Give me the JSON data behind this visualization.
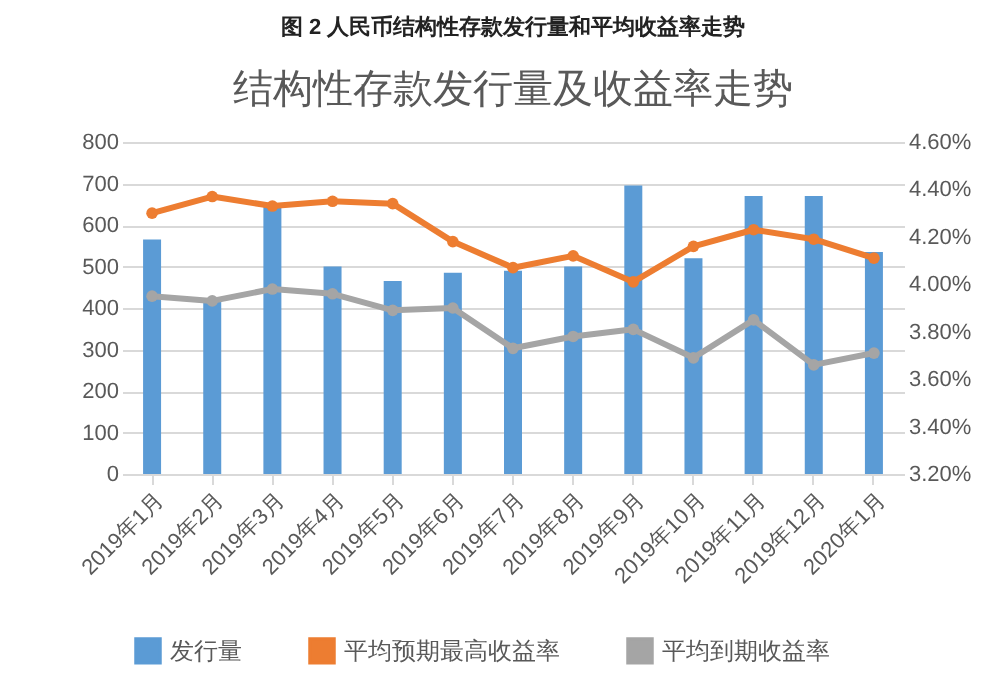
{
  "chart_data": {
    "type": "bar",
    "title": "图 2 人民币结构性存款发行量和平均收益率走势",
    "subtitle": "结构性存款发行量及收益率走势",
    "categories": [
      "2019年1月",
      "2019年2月",
      "2019年3月",
      "2019年4月",
      "2019年5月",
      "2019年6月",
      "2019年7月",
      "2019年8月",
      "2019年9月",
      "2019年10月",
      "2019年11月",
      "2019年12月",
      "2020年1月"
    ],
    "series": [
      {
        "name": "发行量",
        "color": "#5b9bd5",
        "values": [
          565,
          415,
          645,
          500,
          465,
          485,
          490,
          500,
          695,
          520,
          670,
          670,
          535
        ]
      },
      {
        "name": "平均预期最高收益率",
        "type": "line",
        "axis": "y2",
        "color": "#ed7d31",
        "values": [
          4.3,
          4.37,
          4.33,
          4.35,
          4.34,
          4.18,
          4.07,
          4.12,
          4.01,
          4.16,
          4.23,
          4.19,
          4.11
        ]
      },
      {
        "name": "平均到期收益率",
        "type": "line",
        "axis": "y2",
        "color": "#a5a5a5",
        "values": [
          3.95,
          3.93,
          3.98,
          3.96,
          3.89,
          3.9,
          3.73,
          3.78,
          3.81,
          3.69,
          3.85,
          3.66,
          3.71
        ]
      }
    ],
    "ylim": [
      0,
      800
    ],
    "yticks": [
      0,
      100,
      200,
      300,
      400,
      500,
      600,
      700,
      800
    ],
    "y2lim": [
      3.2,
      4.6
    ],
    "y2ticks": [
      {
        "value": 3.2,
        "label": "3.20%"
      },
      {
        "value": 3.4,
        "label": "3.40%"
      },
      {
        "value": 3.6,
        "label": "3.60%"
      },
      {
        "value": 3.8,
        "label": "3.80%"
      },
      {
        "value": 4.0,
        "label": "4.00%"
      },
      {
        "value": 4.2,
        "label": "4.20%"
      },
      {
        "value": 4.4,
        "label": "4.40%"
      },
      {
        "value": 4.6,
        "label": "4.60%"
      }
    ],
    "grid": "y",
    "legend": "bottom",
    "marker": "circle"
  }
}
